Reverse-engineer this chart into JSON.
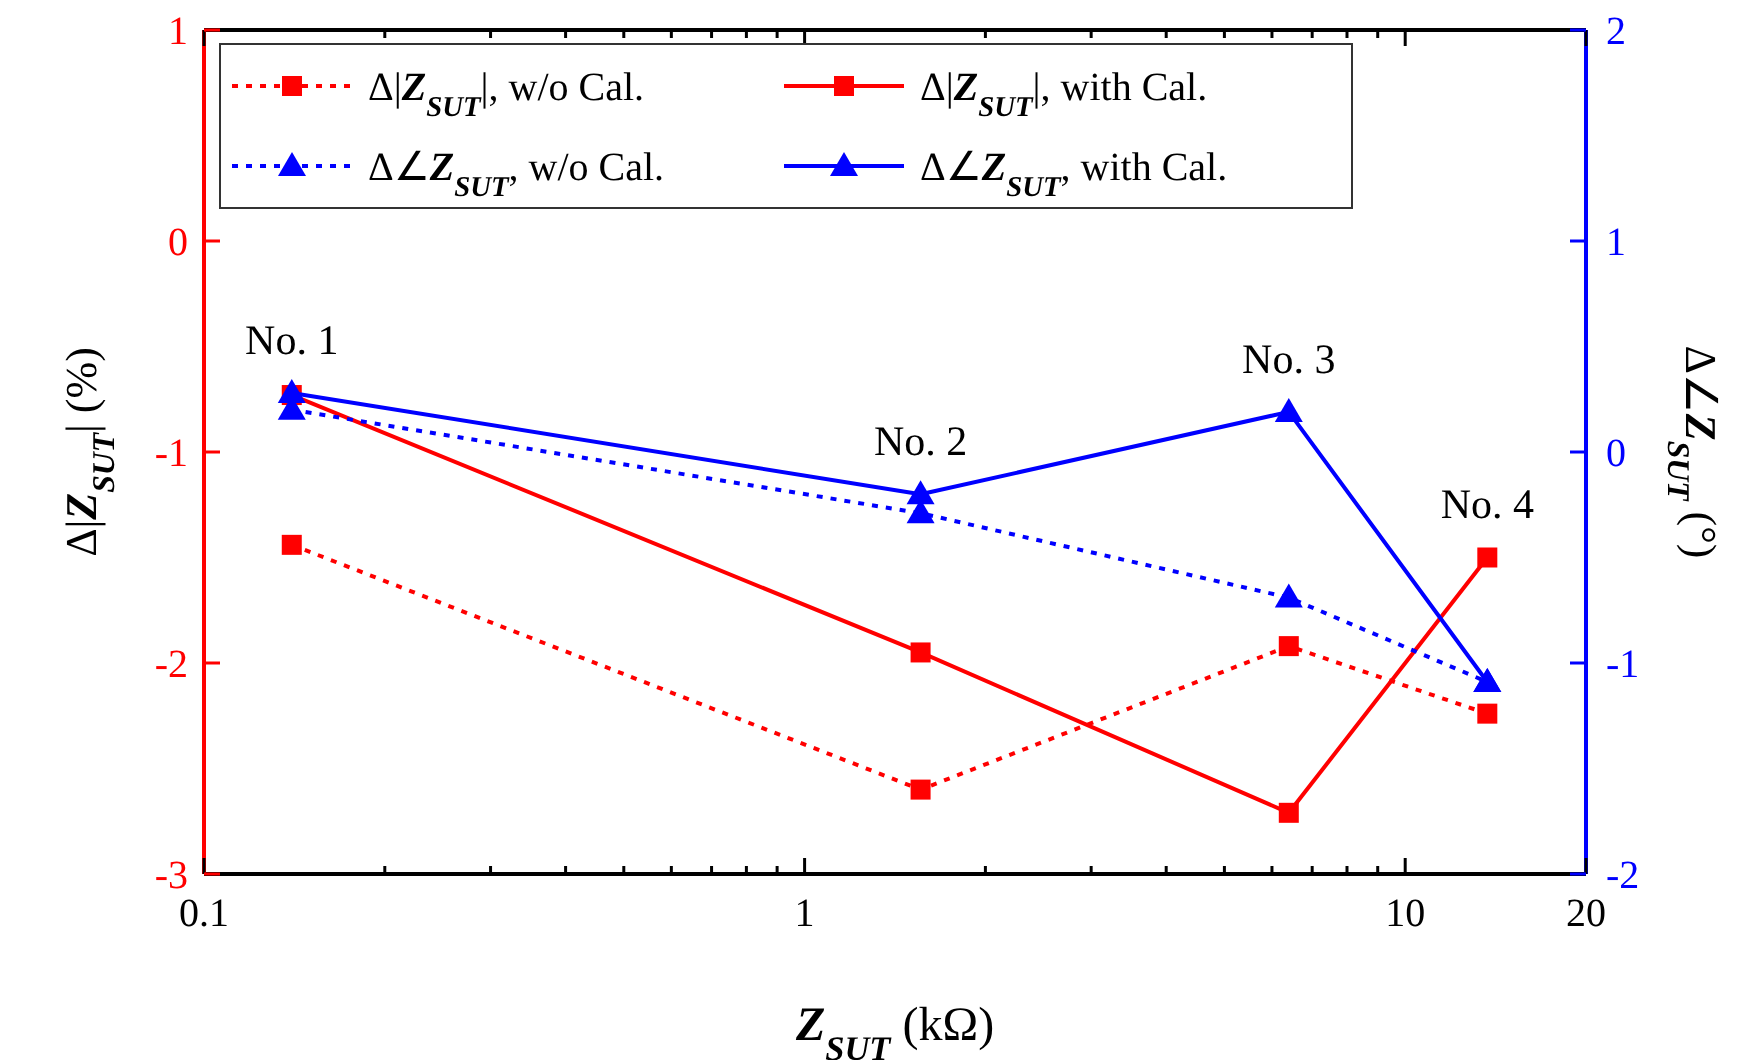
{
  "chart_data": {
    "type": "line",
    "xlabel": "Z$_{SUT}$ (kΩ)",
    "ylabel": "Δ|Z$_{SUT}$| (%)",
    "y2label": "Δ∠Z$_{SUT}$ (°)",
    "x": [
      0.14,
      1.56,
      6.4,
      13.7
    ],
    "log": "x",
    "xlim": [
      0.1,
      20
    ],
    "xticks": [
      0.1,
      {
        "value": 0.2,
        "label": null
      },
      {
        "value": 0.3,
        "label": null
      },
      {
        "value": 0.4,
        "label": null
      },
      {
        "value": 0.5,
        "label": null
      },
      {
        "value": 0.6,
        "label": null
      },
      {
        "value": 0.7,
        "label": null
      },
      {
        "value": 0.8,
        "label": null
      },
      {
        "value": 0.9,
        "label": null
      },
      1,
      {
        "value": 2,
        "label": null
      },
      {
        "value": 3,
        "label": null
      },
      {
        "value": 4,
        "label": null
      },
      {
        "value": 5,
        "label": null
      },
      {
        "value": 6,
        "label": null
      },
      {
        "value": 7,
        "label": null
      },
      {
        "value": 8,
        "label": null
      },
      {
        "value": 9,
        "label": null
      },
      10,
      20
    ],
    "ylim": [
      -3,
      1
    ],
    "yticks": [
      -3,
      -2,
      -1,
      0,
      1
    ],
    "y2lim": [
      -2,
      2
    ],
    "y2ticks": [
      -2,
      -1,
      0,
      1,
      2
    ],
    "legend": "top left",
    "grid": false,
    "series": [
      {
        "name": "Δ|Z$_{SUT}$|, w/o Cal.",
        "color": "#ff0000",
        "values": [
          -1.44,
          -2.6,
          -1.92,
          -2.24
        ],
        "marker": "square",
        "line_style": "dotted"
      },
      {
        "name": "Δ|Z$_{SUT}$|, with Cal.",
        "color": "#ff0000",
        "values": [
          -0.73,
          -1.95,
          -2.71,
          -1.5
        ],
        "marker": "square",
        "line_style": "solid"
      },
      {
        "name": "Δ∠Z$_{SUT}$, w/o Cal.",
        "color": "#0000ff",
        "values": [
          0.2,
          -0.29,
          -0.69,
          -1.09
        ],
        "marker": "triangle",
        "line_style": "dotted",
        "axis": "y2"
      },
      {
        "name": "Δ∠Z$_{SUT}$, with Cal.",
        "color": "#0000ff",
        "values": [
          0.28,
          -0.2,
          0.19,
          -1.09
        ],
        "marker": "triangle",
        "line_style": "solid",
        "axis": "y2"
      }
    ],
    "annotations": [
      "No. 1",
      "No. 2",
      "No. 3",
      "No. 4"
    ]
  }
}
